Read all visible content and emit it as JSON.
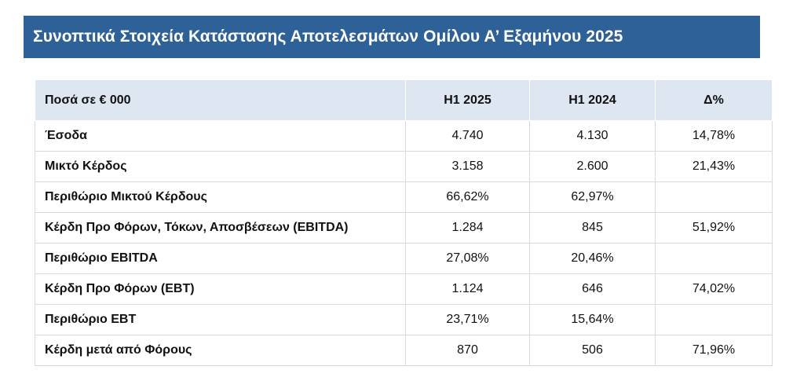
{
  "title": "Συνοπτικά Στοιχεία Κατάστασης Αποτελεσμάτων Ομίλου Α’ Εξαμήνου 2025",
  "table": {
    "headers": [
      "Ποσά σε € 000",
      "H1 2025",
      "H1 2024",
      "Δ%"
    ],
    "rows": [
      [
        "Έσοδα",
        "4.740",
        "4.130",
        "14,78%"
      ],
      [
        "Μικτό Κέρδος",
        "3.158",
        "2.600",
        "21,43%"
      ],
      [
        "Περιθώριο Μικτού Κέρδους",
        "66,62%",
        "62,97%",
        ""
      ],
      [
        "Κέρδη Προ Φόρων, Τόκων, Αποσβέσεων (EBITDA)",
        "1.284",
        "845",
        "51,92%"
      ],
      [
        "Περιθώριο EBITDA",
        "27,08%",
        "20,46%",
        ""
      ],
      [
        "Κέρδη Προ Φόρων (EBT)",
        "1.124",
        "646",
        "74,02%"
      ],
      [
        "Περιθώριο EBT",
        "23,71%",
        "15,64%",
        ""
      ],
      [
        "Κέρδη μετά από Φόρους",
        "870",
        "506",
        "71,96%"
      ]
    ]
  },
  "colors": {
    "banner": "#2e6197",
    "header_fill": "#dde6f1",
    "grid": "#d9d9d9"
  }
}
